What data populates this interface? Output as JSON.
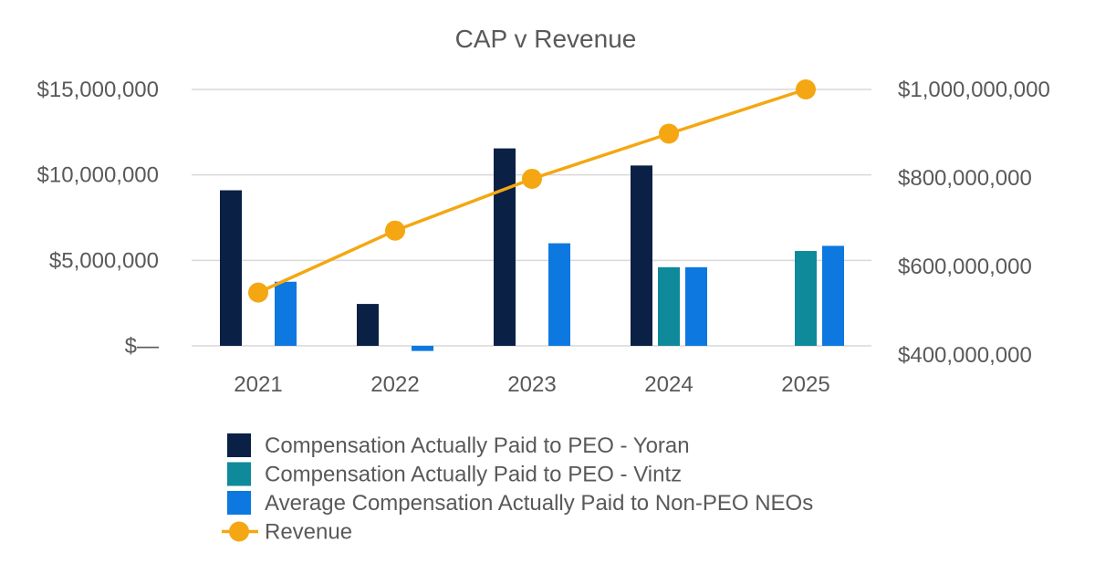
{
  "chart_data": {
    "type": "bar",
    "title": "CAP v Revenue",
    "categories": [
      "2021",
      "2022",
      "2023",
      "2024",
      "2025"
    ],
    "series": [
      {
        "name": "Compensation Actually Paid to PEO - Yoran",
        "type": "bar",
        "axis": "left",
        "color": "#0b2045",
        "values": [
          9100000,
          2450000,
          11550000,
          10550000,
          null
        ]
      },
      {
        "name": "Compensation Actually Paid to PEO - Vintz",
        "type": "bar",
        "axis": "left",
        "color": "#0e8a9a",
        "values": [
          null,
          null,
          null,
          4600000,
          5550000
        ]
      },
      {
        "name": "Average Compensation Actually Paid to Non-PEO NEOs",
        "type": "bar",
        "axis": "left",
        "color": "#0c78e0",
        "values": [
          3750000,
          -300000,
          6000000,
          4600000,
          5850000
        ]
      },
      {
        "name": "Revenue",
        "type": "line",
        "axis": "right",
        "color": "#f4a712",
        "values": [
          541000000,
          681000000,
          798000000,
          900000000,
          1000000000
        ]
      }
    ],
    "y_left": {
      "range": [
        0,
        15000000
      ],
      "ticks": [
        0,
        5000000,
        10000000,
        15000000
      ],
      "tick_labels": [
        "$—",
        "$5,000,000",
        "$10,000,000",
        "$15,000,000"
      ]
    },
    "y_right": {
      "range": [
        400000000,
        1000000000
      ],
      "ticks": [
        400000000,
        600000000,
        800000000,
        1000000000
      ],
      "tick_labels": [
        "$400,000,000",
        "$600,000,000",
        "$800,000,000",
        "$1,000,000,000"
      ]
    },
    "grid": true,
    "legend_position": "bottom"
  }
}
